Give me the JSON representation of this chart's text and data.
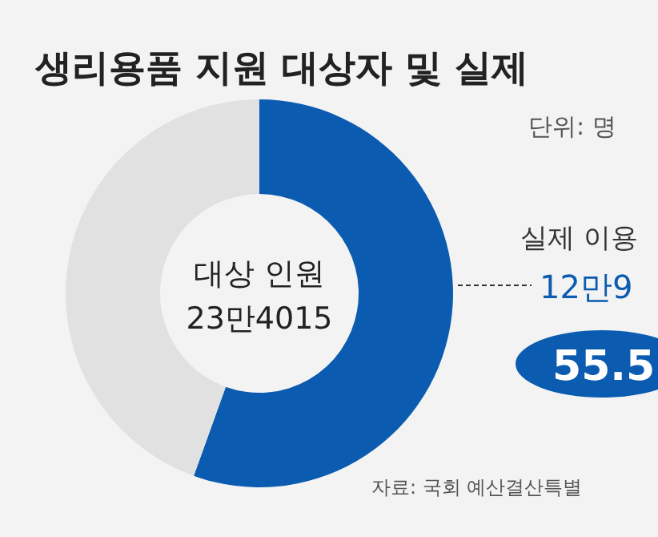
{
  "chart_data": {
    "type": "donut",
    "title": "생리용품 지원 대상자 및 실제",
    "subtitle": "단위: 명",
    "categories": [
      null,
      null
    ],
    "values": [
      55.5,
      44.5
    ],
    "colors": [
      "#0b5cb0",
      "#e1e1e1"
    ],
    "value_labels": [
      "55.5",
      null
    ],
    "annotations": [
      "대상 인원",
      "23만4015",
      "실제 이용",
      "12만9",
      "자료: 국회 예산결산특별"
    ]
  }
}
